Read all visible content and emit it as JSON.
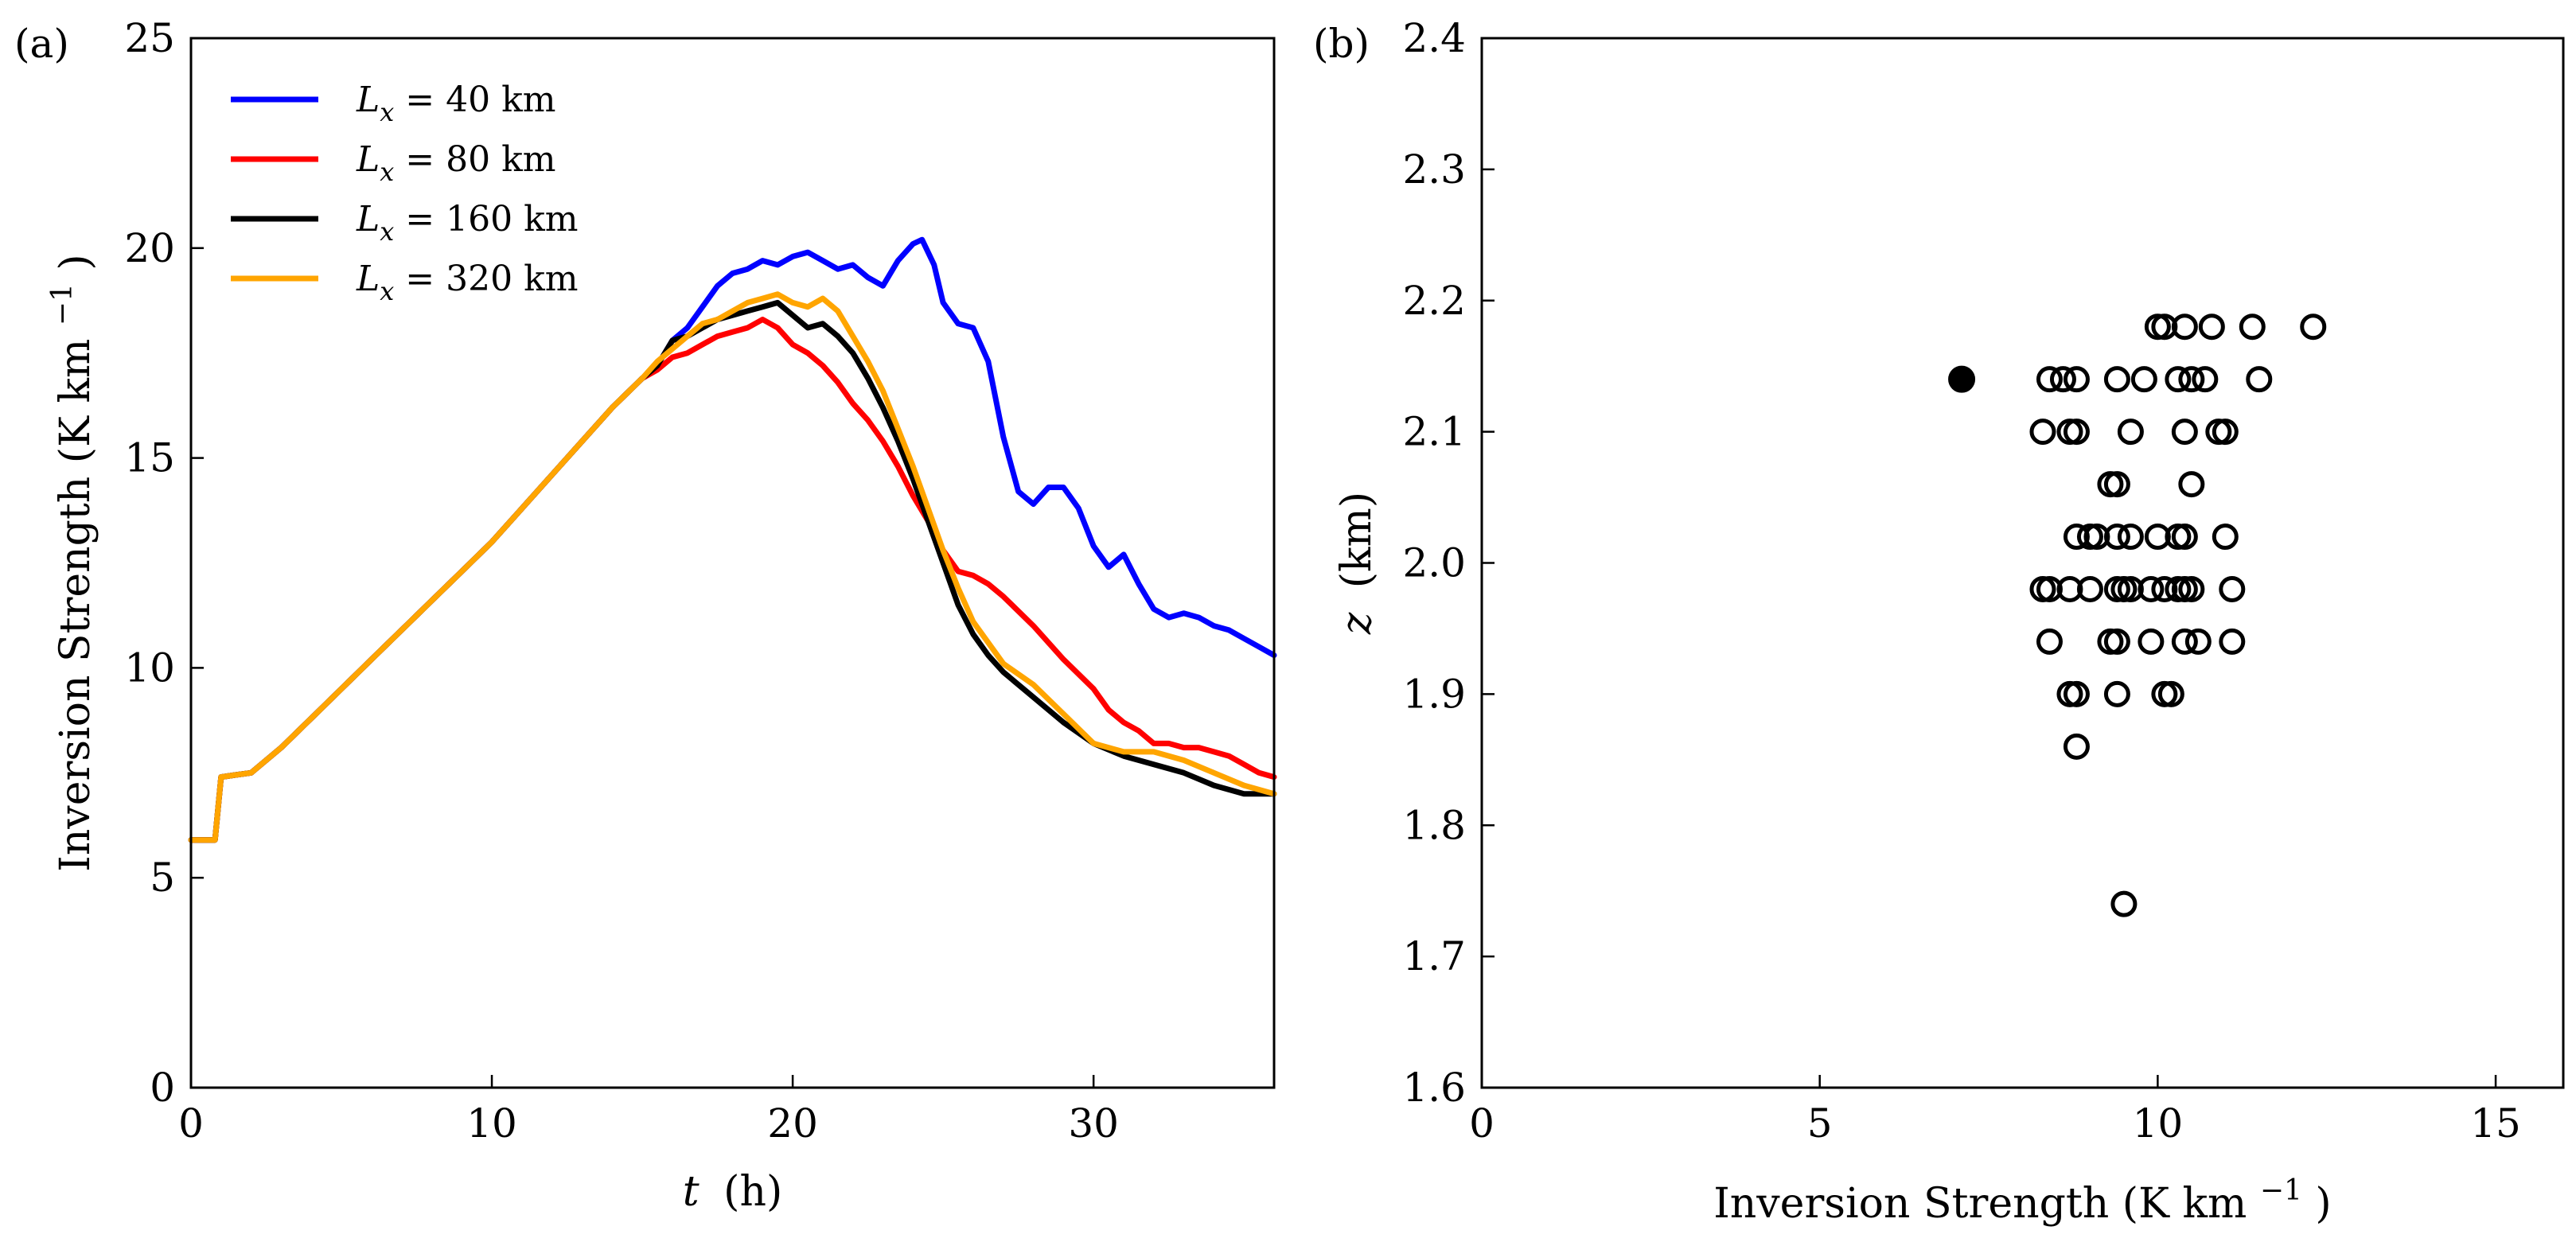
{
  "chart_data": [
    {
      "panel_label": "(a)",
      "type": "line",
      "title": "",
      "xlabel_var": "t",
      "xlabel_unit": "(h)",
      "ylabel": "Inversion Strength (K km",
      "ylabel_sup": "−1",
      "ylabel_close": ")",
      "xlim": [
        0,
        36
      ],
      "ylim": [
        0,
        25
      ],
      "xticks": [
        0,
        10,
        20,
        30
      ],
      "yticks": [
        0,
        5,
        10,
        15,
        20,
        25
      ],
      "grid": false,
      "legend_position": "top-left",
      "series": [
        {
          "name": "L_x = 40 km",
          "legend_var": "L",
          "legend_sub": "x",
          "legend_rest": " = 40 km",
          "color": "#0000ff",
          "x": [
            0,
            0.8,
            1,
            1.5,
            2,
            3,
            4,
            5,
            6,
            7,
            8,
            9,
            10,
            11,
            12,
            13,
            14,
            15,
            15.5,
            16,
            16.5,
            17,
            17.5,
            18,
            18.5,
            19,
            19.5,
            20,
            20.5,
            21,
            21.5,
            22,
            22.5,
            23,
            23.5,
            24,
            24.3,
            24.7,
            25,
            25.5,
            26,
            26.5,
            27,
            27.5,
            28,
            28.5,
            29,
            29.5,
            30,
            30.5,
            31,
            31.5,
            32,
            32.5,
            33,
            33.5,
            34,
            34.5,
            35,
            35.5,
            36
          ],
          "y": [
            5.9,
            5.9,
            7.4,
            7.45,
            7.5,
            8.1,
            8.8,
            9.5,
            10.2,
            10.9,
            11.6,
            12.3,
            13,
            13.8,
            14.6,
            15.4,
            16.2,
            16.9,
            17.2,
            17.8,
            18.1,
            18.6,
            19.1,
            19.4,
            19.5,
            19.7,
            19.6,
            19.8,
            19.9,
            19.7,
            19.5,
            19.6,
            19.3,
            19.1,
            19.7,
            20.1,
            20.2,
            19.6,
            18.7,
            18.2,
            18.1,
            17.3,
            15.5,
            14.2,
            13.9,
            14.3,
            14.3,
            13.8,
            12.9,
            12.4,
            12.7,
            12.0,
            11.4,
            11.2,
            11.3,
            11.2,
            11.0,
            10.9,
            10.7,
            10.5,
            10.3
          ]
        },
        {
          "name": "L_x = 80 km",
          "legend_var": "L",
          "legend_sub": "x",
          "legend_rest": " = 80 km",
          "color": "#ff0000",
          "x": [
            0,
            0.8,
            1,
            1.5,
            2,
            3,
            4,
            5,
            6,
            7,
            8,
            9,
            10,
            11,
            12,
            13,
            14,
            15,
            15.5,
            16,
            16.5,
            17,
            17.5,
            18,
            18.5,
            19,
            19.5,
            20,
            20.5,
            21,
            21.5,
            22,
            22.5,
            23,
            23.5,
            24,
            24.5,
            25,
            25.5,
            26,
            26.5,
            27,
            28,
            29,
            30,
            30.5,
            31,
            31.5,
            32,
            32.5,
            33,
            33.5,
            34,
            34.5,
            35,
            35.5,
            36
          ],
          "y": [
            5.9,
            5.9,
            7.4,
            7.45,
            7.5,
            8.1,
            8.8,
            9.5,
            10.2,
            10.9,
            11.6,
            12.3,
            13,
            13.8,
            14.6,
            15.4,
            16.2,
            16.9,
            17.1,
            17.4,
            17.5,
            17.7,
            17.9,
            18.0,
            18.1,
            18.3,
            18.1,
            17.7,
            17.5,
            17.2,
            16.8,
            16.3,
            15.9,
            15.4,
            14.8,
            14.1,
            13.5,
            12.8,
            12.3,
            12.2,
            12.0,
            11.7,
            11.0,
            10.2,
            9.5,
            9.0,
            8.7,
            8.5,
            8.2,
            8.2,
            8.1,
            8.1,
            8.0,
            7.9,
            7.7,
            7.5,
            7.4
          ]
        },
        {
          "name": "L_x = 160 km",
          "legend_var": "L",
          "legend_sub": "x",
          "legend_rest": " = 160 km",
          "color": "#000000",
          "x": [
            0,
            0.8,
            1,
            1.5,
            2,
            3,
            4,
            5,
            6,
            7,
            8,
            9,
            10,
            11,
            12,
            13,
            14,
            15,
            15.5,
            16,
            16.5,
            17,
            17.5,
            18,
            18.5,
            19,
            19.5,
            20,
            20.5,
            21,
            21.5,
            22,
            22.5,
            23,
            23.5,
            24,
            24.5,
            25,
            25.5,
            26,
            26.5,
            27,
            28,
            29,
            30,
            31,
            32,
            33,
            34,
            35,
            36
          ],
          "y": [
            5.9,
            5.9,
            7.4,
            7.45,
            7.5,
            8.1,
            8.8,
            9.5,
            10.2,
            10.9,
            11.6,
            12.3,
            13,
            13.8,
            14.6,
            15.4,
            16.2,
            16.9,
            17.2,
            17.8,
            17.9,
            18.1,
            18.3,
            18.4,
            18.5,
            18.6,
            18.7,
            18.4,
            18.1,
            18.2,
            17.9,
            17.5,
            16.9,
            16.2,
            15.4,
            14.5,
            13.5,
            12.5,
            11.5,
            10.8,
            10.3,
            9.9,
            9.3,
            8.7,
            8.2,
            7.9,
            7.7,
            7.5,
            7.2,
            7.0,
            7.0
          ]
        },
        {
          "name": "L_x = 320 km",
          "legend_var": "L",
          "legend_sub": "x",
          "legend_rest": " = 320 km",
          "color": "#ffa500",
          "x": [
            0,
            0.8,
            1,
            1.5,
            2,
            3,
            4,
            5,
            6,
            7,
            8,
            9,
            10,
            11,
            12,
            13,
            14,
            15,
            15.5,
            16,
            16.5,
            17,
            17.5,
            18,
            18.5,
            19,
            19.5,
            20,
            20.5,
            21,
            21.5,
            22,
            22.5,
            23,
            23.5,
            24,
            24.5,
            25,
            25.5,
            26,
            26.5,
            27,
            28,
            29,
            30,
            31,
            32,
            33,
            34,
            35,
            36
          ],
          "y": [
            5.9,
            5.9,
            7.4,
            7.45,
            7.5,
            8.1,
            8.8,
            9.5,
            10.2,
            10.9,
            11.6,
            12.3,
            13,
            13.8,
            14.6,
            15.4,
            16.2,
            16.9,
            17.3,
            17.6,
            17.9,
            18.2,
            18.3,
            18.5,
            18.7,
            18.8,
            18.9,
            18.7,
            18.6,
            18.8,
            18.5,
            17.9,
            17.3,
            16.6,
            15.7,
            14.8,
            13.8,
            12.8,
            11.9,
            11.1,
            10.6,
            10.1,
            9.6,
            8.9,
            8.2,
            8.0,
            8.0,
            7.8,
            7.5,
            7.2,
            7.0
          ]
        }
      ]
    },
    {
      "panel_label": "(b)",
      "type": "scatter",
      "title": "",
      "xlabel": "Inversion Strength (K km",
      "xlabel_sup": "−1",
      "xlabel_close": ")",
      "ylabel_var": "z",
      "ylabel_unit": "(km)",
      "xlim": [
        0,
        16
      ],
      "ylim": [
        1.6,
        2.4
      ],
      "xticks": [
        0,
        5,
        10,
        15
      ],
      "yticks": [
        1.6,
        1.7,
        1.8,
        1.9,
        2.0,
        2.1,
        2.2,
        2.3,
        2.4
      ],
      "ytick_labels": [
        "1.6",
        "1.7",
        "1.8",
        "1.9",
        "2.0",
        "2.1",
        "2.2",
        "2.3",
        "2.4"
      ],
      "grid": false,
      "filled_points": [
        {
          "x": 7.1,
          "y": 2.14
        }
      ],
      "open_points": [
        {
          "x": 10.0,
          "y": 2.18
        },
        {
          "x": 10.1,
          "y": 2.18
        },
        {
          "x": 10.4,
          "y": 2.18
        },
        {
          "x": 10.8,
          "y": 2.18
        },
        {
          "x": 11.4,
          "y": 2.18
        },
        {
          "x": 12.3,
          "y": 2.18
        },
        {
          "x": 8.4,
          "y": 2.14
        },
        {
          "x": 8.6,
          "y": 2.14
        },
        {
          "x": 8.8,
          "y": 2.14
        },
        {
          "x": 9.4,
          "y": 2.14
        },
        {
          "x": 9.8,
          "y": 2.14
        },
        {
          "x": 10.3,
          "y": 2.14
        },
        {
          "x": 10.5,
          "y": 2.14
        },
        {
          "x": 10.7,
          "y": 2.14
        },
        {
          "x": 11.5,
          "y": 2.14
        },
        {
          "x": 8.3,
          "y": 2.1
        },
        {
          "x": 8.7,
          "y": 2.1
        },
        {
          "x": 8.8,
          "y": 2.1
        },
        {
          "x": 9.6,
          "y": 2.1
        },
        {
          "x": 10.4,
          "y": 2.1
        },
        {
          "x": 10.9,
          "y": 2.1
        },
        {
          "x": 11.0,
          "y": 2.1
        },
        {
          "x": 9.3,
          "y": 2.06
        },
        {
          "x": 9.4,
          "y": 2.06
        },
        {
          "x": 10.5,
          "y": 2.06
        },
        {
          "x": 8.8,
          "y": 2.02
        },
        {
          "x": 9.0,
          "y": 2.02
        },
        {
          "x": 9.1,
          "y": 2.02
        },
        {
          "x": 9.4,
          "y": 2.02
        },
        {
          "x": 9.6,
          "y": 2.02
        },
        {
          "x": 10.0,
          "y": 2.02
        },
        {
          "x": 10.3,
          "y": 2.02
        },
        {
          "x": 10.4,
          "y": 2.02
        },
        {
          "x": 11.0,
          "y": 2.02
        },
        {
          "x": 8.3,
          "y": 1.98
        },
        {
          "x": 8.4,
          "y": 1.98
        },
        {
          "x": 8.7,
          "y": 1.98
        },
        {
          "x": 9.0,
          "y": 1.98
        },
        {
          "x": 9.4,
          "y": 1.98
        },
        {
          "x": 9.5,
          "y": 1.98
        },
        {
          "x": 9.6,
          "y": 1.98
        },
        {
          "x": 9.9,
          "y": 1.98
        },
        {
          "x": 10.1,
          "y": 1.98
        },
        {
          "x": 10.3,
          "y": 1.98
        },
        {
          "x": 10.4,
          "y": 1.98
        },
        {
          "x": 10.5,
          "y": 1.98
        },
        {
          "x": 11.1,
          "y": 1.98
        },
        {
          "x": 8.4,
          "y": 1.94
        },
        {
          "x": 9.3,
          "y": 1.94
        },
        {
          "x": 9.4,
          "y": 1.94
        },
        {
          "x": 9.9,
          "y": 1.94
        },
        {
          "x": 10.4,
          "y": 1.94
        },
        {
          "x": 10.6,
          "y": 1.94
        },
        {
          "x": 11.1,
          "y": 1.94
        },
        {
          "x": 8.7,
          "y": 1.9
        },
        {
          "x": 8.8,
          "y": 1.9
        },
        {
          "x": 9.4,
          "y": 1.9
        },
        {
          "x": 10.1,
          "y": 1.9
        },
        {
          "x": 10.2,
          "y": 1.9
        },
        {
          "x": 8.8,
          "y": 1.86
        },
        {
          "x": 9.5,
          "y": 1.74
        }
      ]
    }
  ]
}
